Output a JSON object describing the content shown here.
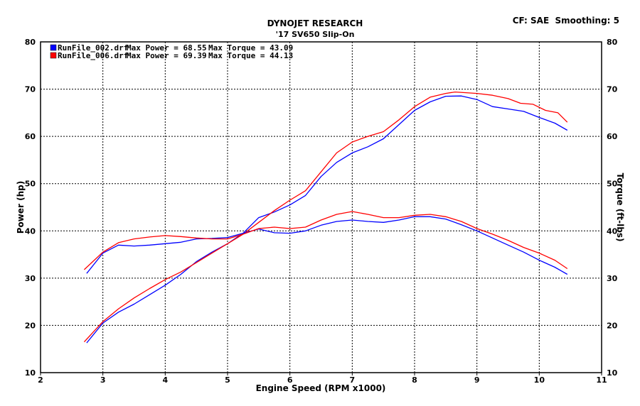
{
  "chart_data": {
    "type": "line",
    "title": "DYNOJET RESEARCH",
    "subtitle": "'17 SV650 Slip-On",
    "top_right": "CF: SAE  Smoothing: 5",
    "xlabel": "Engine Speed (RPM x1000)",
    "ylabel_left": "Power (hp)",
    "ylabel_right": "Torque (ft-lbs)",
    "xlim": [
      2,
      11
    ],
    "ylim": [
      10,
      80
    ],
    "xticks": [
      "2",
      "3",
      "4",
      "5",
      "6",
      "7",
      "8",
      "9",
      "10",
      "11"
    ],
    "yticks": [
      "10",
      "20",
      "30",
      "40",
      "50",
      "60",
      "70",
      "80"
    ],
    "grid": true,
    "legend_position": "top-left",
    "legend": [
      {
        "file": "RunFile_002.drf",
        "power": "Max Power = 68.55",
        "torque": "Max Torque = 43.09",
        "color": "#0000ff"
      },
      {
        "file": "RunFile_006.drf",
        "power": "Max Power = 69.39",
        "torque": "Max Torque = 44.13",
        "color": "#ff0000"
      }
    ],
    "series": [
      {
        "file": "RunFile_002.drf",
        "quantity": "Power",
        "color": "#0000ff",
        "points": [
          [
            2.74,
            16.3
          ],
          [
            3.0,
            20.5
          ],
          [
            3.25,
            22.8
          ],
          [
            3.5,
            24.5
          ],
          [
            3.75,
            26.5
          ],
          [
            4.0,
            28.5
          ],
          [
            4.25,
            30.8
          ],
          [
            4.5,
            33.5
          ],
          [
            4.75,
            35.5
          ],
          [
            5.0,
            37.3
          ],
          [
            5.25,
            39.5
          ],
          [
            5.5,
            42.8
          ],
          [
            5.75,
            44.0
          ],
          [
            6.0,
            45.5
          ],
          [
            6.25,
            47.5
          ],
          [
            6.5,
            51.5
          ],
          [
            6.75,
            54.5
          ],
          [
            7.0,
            56.5
          ],
          [
            7.25,
            57.8
          ],
          [
            7.5,
            59.5
          ],
          [
            7.75,
            62.5
          ],
          [
            8.0,
            65.5
          ],
          [
            8.25,
            67.3
          ],
          [
            8.5,
            68.5
          ],
          [
            8.75,
            68.55
          ],
          [
            9.0,
            67.8
          ],
          [
            9.25,
            66.3
          ],
          [
            9.5,
            65.8
          ],
          [
            9.75,
            65.3
          ],
          [
            10.0,
            64.0
          ],
          [
            10.25,
            62.8
          ],
          [
            10.45,
            61.3
          ]
        ]
      },
      {
        "file": "RunFile_006.drf",
        "quantity": "Power",
        "color": "#ff0000",
        "points": [
          [
            2.7,
            16.5
          ],
          [
            3.0,
            20.8
          ],
          [
            3.25,
            23.5
          ],
          [
            3.5,
            25.8
          ],
          [
            3.75,
            27.8
          ],
          [
            4.0,
            29.7
          ],
          [
            4.25,
            31.3
          ],
          [
            4.5,
            33.3
          ],
          [
            4.75,
            35.3
          ],
          [
            5.0,
            37.3
          ],
          [
            5.25,
            39.3
          ],
          [
            5.5,
            41.8
          ],
          [
            5.75,
            44.3
          ],
          [
            6.0,
            46.5
          ],
          [
            6.25,
            48.5
          ],
          [
            6.5,
            52.5
          ],
          [
            6.75,
            56.5
          ],
          [
            7.0,
            58.8
          ],
          [
            7.25,
            60.0
          ],
          [
            7.5,
            61.0
          ],
          [
            7.75,
            63.5
          ],
          [
            8.0,
            66.3
          ],
          [
            8.25,
            68.3
          ],
          [
            8.5,
            69.1
          ],
          [
            8.65,
            69.39
          ],
          [
            9.0,
            69.1
          ],
          [
            9.25,
            68.7
          ],
          [
            9.5,
            68.0
          ],
          [
            9.7,
            67.0
          ],
          [
            9.9,
            66.8
          ],
          [
            10.1,
            65.5
          ],
          [
            10.3,
            65.0
          ],
          [
            10.45,
            63.0
          ]
        ]
      },
      {
        "file": "RunFile_002.drf",
        "quantity": "Torque",
        "color": "#0000ff",
        "points": [
          [
            2.74,
            31.0
          ],
          [
            3.0,
            35.3
          ],
          [
            3.25,
            37.0
          ],
          [
            3.5,
            36.8
          ],
          [
            3.75,
            37.0
          ],
          [
            4.0,
            37.3
          ],
          [
            4.25,
            37.6
          ],
          [
            4.5,
            38.3
          ],
          [
            4.75,
            38.4
          ],
          [
            5.0,
            38.6
          ],
          [
            5.25,
            39.5
          ],
          [
            5.5,
            40.4
          ],
          [
            5.75,
            39.6
          ],
          [
            6.0,
            39.5
          ],
          [
            6.25,
            40.0
          ],
          [
            6.5,
            41.2
          ],
          [
            6.75,
            42.0
          ],
          [
            7.0,
            42.3
          ],
          [
            7.25,
            42.0
          ],
          [
            7.5,
            41.8
          ],
          [
            7.75,
            42.3
          ],
          [
            8.0,
            43.0
          ],
          [
            8.25,
            43.0
          ],
          [
            8.5,
            42.5
          ],
          [
            8.75,
            41.3
          ],
          [
            9.0,
            40.0
          ],
          [
            9.25,
            38.5
          ],
          [
            9.5,
            37.0
          ],
          [
            9.75,
            35.5
          ],
          [
            10.0,
            33.8
          ],
          [
            10.25,
            32.3
          ],
          [
            10.45,
            30.8
          ]
        ]
      },
      {
        "file": "RunFile_006.drf",
        "quantity": "Torque",
        "color": "#ff0000",
        "points": [
          [
            2.7,
            31.8
          ],
          [
            3.0,
            35.5
          ],
          [
            3.25,
            37.5
          ],
          [
            3.5,
            38.3
          ],
          [
            3.75,
            38.7
          ],
          [
            4.0,
            39.0
          ],
          [
            4.25,
            38.8
          ],
          [
            4.5,
            38.5
          ],
          [
            4.75,
            38.3
          ],
          [
            5.0,
            38.3
          ],
          [
            5.25,
            39.3
          ],
          [
            5.5,
            40.5
          ],
          [
            5.75,
            40.8
          ],
          [
            6.0,
            40.5
          ],
          [
            6.25,
            40.8
          ],
          [
            6.5,
            42.3
          ],
          [
            6.75,
            43.5
          ],
          [
            7.0,
            44.1
          ],
          [
            7.25,
            43.5
          ],
          [
            7.5,
            42.8
          ],
          [
            7.75,
            42.8
          ],
          [
            8.0,
            43.3
          ],
          [
            8.25,
            43.5
          ],
          [
            8.5,
            43.0
          ],
          [
            8.75,
            42.0
          ],
          [
            9.0,
            40.5
          ],
          [
            9.25,
            39.3
          ],
          [
            9.5,
            38.0
          ],
          [
            9.75,
            36.5
          ],
          [
            10.0,
            35.3
          ],
          [
            10.25,
            33.8
          ],
          [
            10.45,
            32.0
          ]
        ]
      }
    ]
  }
}
